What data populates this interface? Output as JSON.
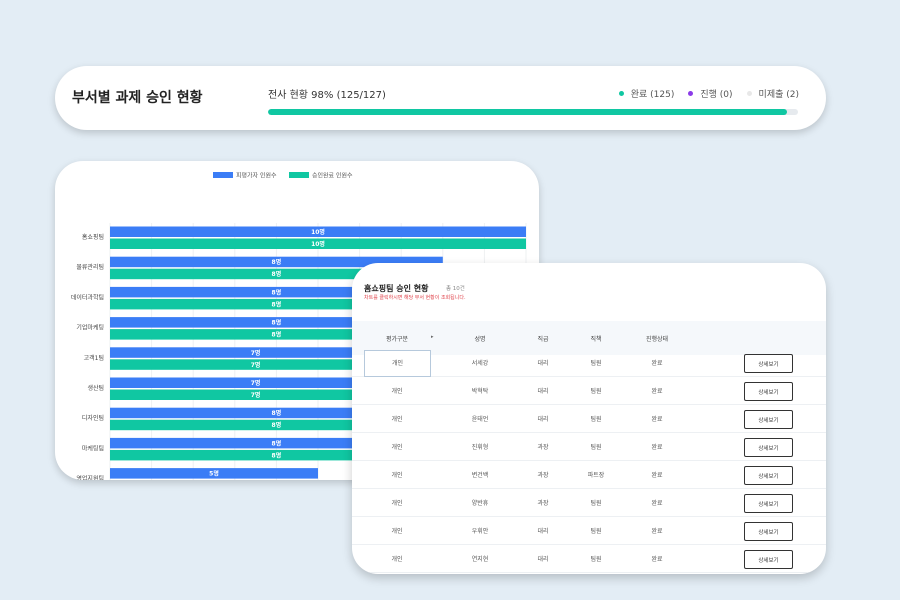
{
  "summary": {
    "title": "부서별 과제 승인 현황",
    "rate_text": "전사 현황 98% (125/127)",
    "progress_percent": 98,
    "legend": [
      {
        "label": "완료 (125)",
        "color": "#10c7a2"
      },
      {
        "label": "진행 (0)",
        "color": "#8b3be8"
      },
      {
        "label": "미제출 (2)",
        "color": "#e8e8e8"
      }
    ]
  },
  "colors": {
    "evaluatee": "#3b7df6",
    "approved": "#10c7a2"
  },
  "chart_data": {
    "type": "bar",
    "orientation": "horizontal",
    "categories": [
      "홈쇼핑팀",
      "물류관리팀",
      "데이터과학팀",
      "기업마케팅",
      "고객1팀",
      "생산팀",
      "디자인팀",
      "마케팅팀",
      "영업지원팀"
    ],
    "series": [
      {
        "name": "피평가자 인원수",
        "values": [
          10,
          8,
          8,
          8,
          7,
          7,
          8,
          8,
          5
        ]
      },
      {
        "name": "승인완료 인원수",
        "values": [
          10,
          8,
          8,
          8,
          7,
          7,
          8,
          8,
          null
        ]
      }
    ],
    "value_suffix": "명",
    "xlim": [
      0,
      10
    ],
    "grid": true,
    "legend_position": "top"
  },
  "table": {
    "title": "홈쇼핑팀 승인 현황",
    "count": "총 10건",
    "note": "차트를 클릭하시면 해당 부서 현황이 조회됩니다.",
    "headers": [
      "평가구분",
      "성명",
      "직급",
      "직책",
      "진행상태"
    ],
    "sort_icon": "▸",
    "button_label": "상세보기",
    "rows": [
      [
        "개인",
        "서세강",
        "대리",
        "팀원",
        "완료"
      ],
      [
        "개인",
        "박혁탁",
        "대리",
        "팀원",
        "완료"
      ],
      [
        "개인",
        "윤태언",
        "대리",
        "팀원",
        "완료"
      ],
      [
        "개인",
        "진휘형",
        "과장",
        "팀원",
        "완료"
      ],
      [
        "개인",
        "변건백",
        "과장",
        "파트장",
        "완료"
      ],
      [
        "개인",
        "양반휴",
        "과장",
        "팀원",
        "완료"
      ],
      [
        "개인",
        "우휘안",
        "대리",
        "팀원",
        "완료"
      ],
      [
        "개인",
        "연지현",
        "대리",
        "팀원",
        "완료"
      ]
    ]
  }
}
